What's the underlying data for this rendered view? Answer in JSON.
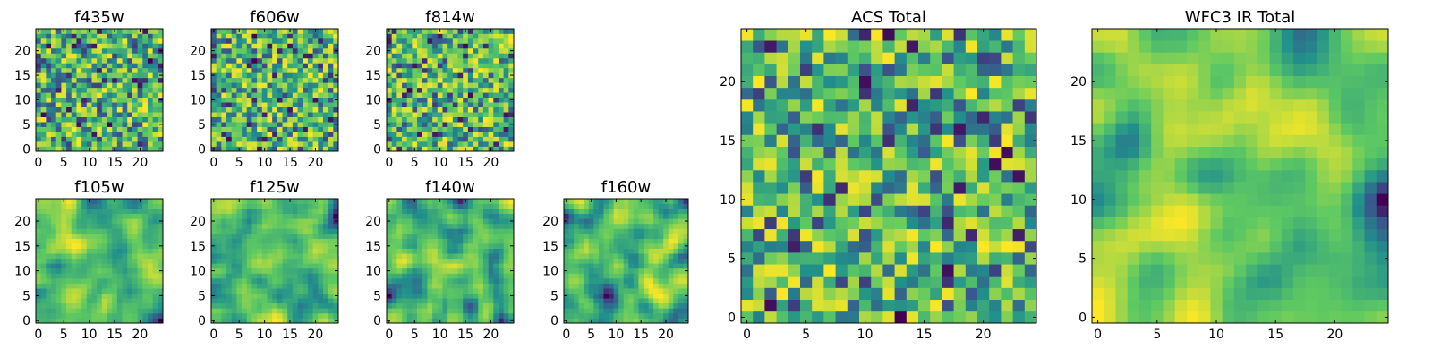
{
  "chart_data": [
    {
      "type": "heatmap",
      "title": "f435w",
      "xticks": [
        "0",
        "5",
        "10",
        "15",
        "20"
      ],
      "yticks": [
        "0",
        "5",
        "10",
        "15",
        "20"
      ],
      "xlim": [
        -0.5,
        24.5
      ],
      "ylim": [
        -0.5,
        24.5
      ],
      "grid_size": 25,
      "colormap": "viridis",
      "seed": 11,
      "smooth": 0
    },
    {
      "type": "heatmap",
      "title": "f606w",
      "xticks": [
        "0",
        "5",
        "10",
        "15",
        "20"
      ],
      "yticks": [
        "0",
        "5",
        "10",
        "15",
        "20"
      ],
      "xlim": [
        -0.5,
        24.5
      ],
      "ylim": [
        -0.5,
        24.5
      ],
      "grid_size": 25,
      "colormap": "viridis",
      "seed": 23,
      "smooth": 0
    },
    {
      "type": "heatmap",
      "title": "f814w",
      "xticks": [
        "0",
        "5",
        "10",
        "15",
        "20"
      ],
      "yticks": [
        "0",
        "5",
        "10",
        "15",
        "20"
      ],
      "xlim": [
        -0.5,
        24.5
      ],
      "ylim": [
        -0.5,
        24.5
      ],
      "grid_size": 25,
      "colormap": "viridis",
      "seed": 37,
      "smooth": 0
    },
    {
      "type": "heatmap",
      "title": "f105w",
      "xticks": [
        "0",
        "5",
        "10",
        "15",
        "20"
      ],
      "yticks": [
        "0",
        "5",
        "10",
        "15",
        "20"
      ],
      "xlim": [
        -0.5,
        24.5
      ],
      "ylim": [
        -0.5,
        24.5
      ],
      "grid_size": 25,
      "colormap": "viridis",
      "seed": 41,
      "smooth": 2
    },
    {
      "type": "heatmap",
      "title": "f125w",
      "xticks": [
        "0",
        "5",
        "10",
        "15",
        "20"
      ],
      "yticks": [
        "0",
        "5",
        "10",
        "15",
        "20"
      ],
      "xlim": [
        -0.5,
        24.5
      ],
      "ylim": [
        -0.5,
        24.5
      ],
      "grid_size": 25,
      "colormap": "viridis",
      "seed": 53,
      "smooth": 2
    },
    {
      "type": "heatmap",
      "title": "f140w",
      "xticks": [
        "0",
        "5",
        "10",
        "15",
        "20"
      ],
      "yticks": [
        "0",
        "5",
        "10",
        "15",
        "20"
      ],
      "xlim": [
        -0.5,
        24.5
      ],
      "ylim": [
        -0.5,
        24.5
      ],
      "grid_size": 25,
      "colormap": "viridis",
      "seed": 67,
      "smooth": 2
    },
    {
      "type": "heatmap",
      "title": "f160w",
      "xticks": [
        "0",
        "5",
        "10",
        "15",
        "20"
      ],
      "yticks": [
        "0",
        "5",
        "10",
        "15",
        "20"
      ],
      "xlim": [
        -0.5,
        24.5
      ],
      "ylim": [
        -0.5,
        24.5
      ],
      "grid_size": 25,
      "colormap": "viridis",
      "seed": 79,
      "smooth": 2
    },
    {
      "type": "heatmap",
      "title": "ACS Total",
      "xticks": [
        "0",
        "5",
        "10",
        "15",
        "20"
      ],
      "yticks": [
        "0",
        "5",
        "10",
        "15",
        "20"
      ],
      "xlim": [
        -0.5,
        24.5
      ],
      "ylim": [
        -0.5,
        24.5
      ],
      "grid_size": 25,
      "colormap": "viridis",
      "seed": 97,
      "smooth": 0
    },
    {
      "type": "heatmap",
      "title": "WFC3 IR Total",
      "xticks": [
        "0",
        "5",
        "10",
        "15",
        "20"
      ],
      "yticks": [
        "0",
        "5",
        "10",
        "15",
        "20"
      ],
      "xlim": [
        -0.5,
        24.5
      ],
      "ylim": [
        -0.5,
        24.5
      ],
      "grid_size": 25,
      "colormap": "viridis",
      "seed": 113,
      "smooth": 3
    }
  ],
  "colors": {
    "viridis_stops": [
      "#440154",
      "#3b528b",
      "#21918c",
      "#5ec962",
      "#fde725"
    ],
    "frame": "#000000",
    "background": "#ffffff"
  }
}
